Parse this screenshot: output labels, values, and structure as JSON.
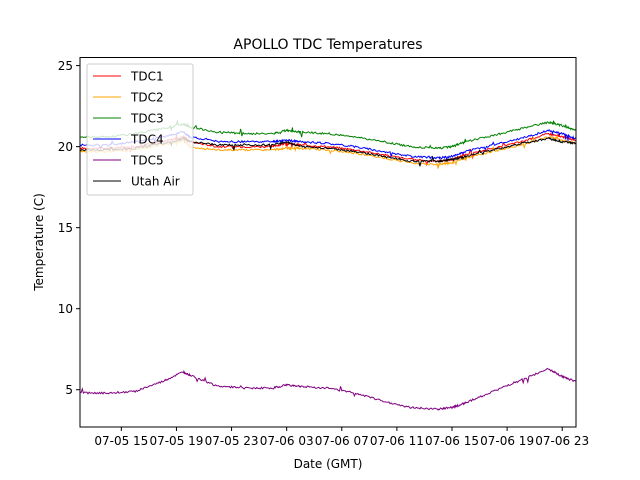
{
  "chart_data": {
    "type": "line",
    "title": "APOLLO TDC Temperatures",
    "xlabel": "Date (GMT)",
    "ylabel": "Temperature (C)",
    "x_unit": "hours since 07-05 12:00 GMT",
    "xlim": [
      0,
      36
    ],
    "ylim": [
      2.7,
      25.5
    ],
    "grid": false,
    "legend_position": "top-left",
    "x_ticks": [
      {
        "value": 3,
        "label": "07-05 15"
      },
      {
        "value": 7,
        "label": "07-05 19"
      },
      {
        "value": 11,
        "label": "07-05 23"
      },
      {
        "value": 15,
        "label": "07-06 03"
      },
      {
        "value": 19,
        "label": "07-06 07"
      },
      {
        "value": 23,
        "label": "07-06 11"
      },
      {
        "value": 27,
        "label": "07-06 15"
      },
      {
        "value": 31,
        "label": "07-06 19"
      },
      {
        "value": 35,
        "label": "07-06 23"
      }
    ],
    "y_ticks": [
      {
        "value": 5,
        "label": "5"
      },
      {
        "value": 10,
        "label": "10"
      },
      {
        "value": 15,
        "label": "15"
      },
      {
        "value": 20,
        "label": "20"
      },
      {
        "value": 25,
        "label": "25"
      }
    ],
    "x": [
      0,
      2,
      4,
      6,
      7.5,
      8,
      10,
      12,
      14,
      15,
      16,
      18,
      20,
      22,
      24,
      26,
      27,
      28,
      30,
      32,
      34,
      35,
      36
    ],
    "series": [
      {
        "name": "TDC1",
        "color": "#ff0000",
        "values": [
          19.9,
          19.9,
          20.0,
          20.3,
          20.6,
          20.3,
          20.0,
          20.0,
          20.0,
          20.2,
          20.1,
          20.0,
          19.8,
          19.5,
          19.2,
          19.1,
          19.2,
          19.5,
          19.9,
          20.3,
          20.8,
          20.6,
          20.4
        ]
      },
      {
        "name": "TDC2",
        "color": "#ffa500",
        "values": [
          19.7,
          19.7,
          19.8,
          20.1,
          20.4,
          20.0,
          19.8,
          19.8,
          19.8,
          19.9,
          19.9,
          19.8,
          19.6,
          19.3,
          19.0,
          18.9,
          19.0,
          19.3,
          19.7,
          20.1,
          20.6,
          20.4,
          20.2
        ]
      },
      {
        "name": "TDC3",
        "color": "#008000",
        "values": [
          20.6,
          20.6,
          20.8,
          21.1,
          21.4,
          21.2,
          20.9,
          20.8,
          20.8,
          21.0,
          20.9,
          20.8,
          20.6,
          20.3,
          20.0,
          19.9,
          20.0,
          20.3,
          20.7,
          21.1,
          21.5,
          21.3,
          21.0
        ]
      },
      {
        "name": "TDC4",
        "color": "#0000ff",
        "values": [
          20.1,
          20.1,
          20.3,
          20.6,
          20.9,
          20.6,
          20.3,
          20.3,
          20.3,
          20.4,
          20.3,
          20.2,
          20.0,
          19.7,
          19.4,
          19.3,
          19.4,
          19.7,
          20.1,
          20.5,
          21.0,
          20.8,
          20.5
        ]
      },
      {
        "name": "TDC5",
        "color": "#800080",
        "values": [
          4.8,
          4.8,
          4.9,
          5.5,
          6.1,
          5.9,
          5.2,
          5.1,
          5.1,
          5.3,
          5.2,
          5.1,
          4.8,
          4.3,
          3.9,
          3.8,
          3.9,
          4.2,
          4.9,
          5.6,
          6.3,
          5.8,
          5.5
        ]
      },
      {
        "name": "Utah Air",
        "color": "#000000",
        "values": [
          19.8,
          19.8,
          19.9,
          20.2,
          20.5,
          20.3,
          20.1,
          20.1,
          20.1,
          20.3,
          20.0,
          19.9,
          19.7,
          19.4,
          19.1,
          19.1,
          19.2,
          19.4,
          19.8,
          20.2,
          20.5,
          20.3,
          20.2
        ]
      }
    ]
  }
}
